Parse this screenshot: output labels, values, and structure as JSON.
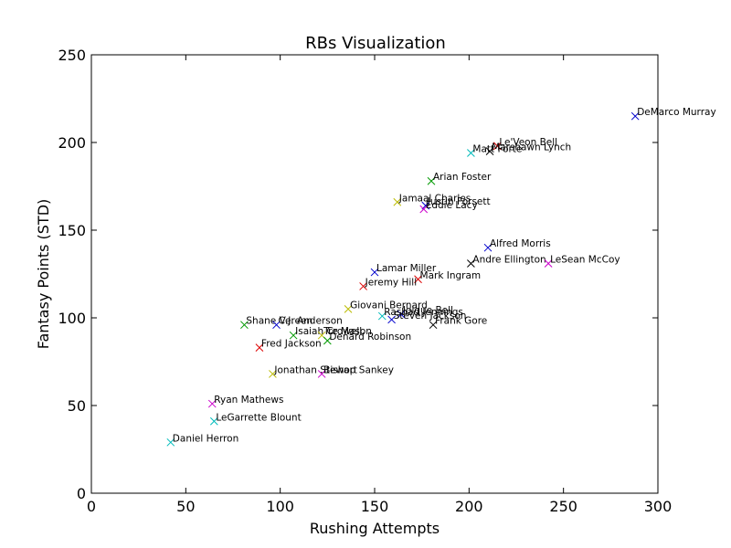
{
  "chart_data": {
    "type": "scatter",
    "title": "RBs Visualization",
    "xlabel": "Rushing Attempts",
    "ylabel": "Fantasy Points (STD)",
    "xlim": [
      0,
      300
    ],
    "ylim": [
      0,
      250
    ],
    "xticks": [
      "0",
      "50",
      "100",
      "150",
      "200",
      "250",
      "300"
    ],
    "yticks": [
      "0",
      "50",
      "100",
      "150",
      "200",
      "250"
    ],
    "grid": false,
    "marker": "x",
    "points": [
      {
        "name": "DeMarco Murray",
        "x": 288,
        "y": 215,
        "color": "#0000cc"
      },
      {
        "name": "Le'Veon Bell",
        "x": 215,
        "y": 198,
        "color": "#dd0000"
      },
      {
        "name": "Marshawn Lynch",
        "x": 211,
        "y": 195,
        "color": "#000000"
      },
      {
        "name": "Matt Forte",
        "x": 201,
        "y": 194,
        "color": "#00bbbb"
      },
      {
        "name": "Arian Foster",
        "x": 180,
        "y": 178,
        "color": "#009900"
      },
      {
        "name": "Jamaal Charles",
        "x": 162,
        "y": 166,
        "color": "#bbbb00"
      },
      {
        "name": "Justin Forsett",
        "x": 177,
        "y": 164,
        "color": "#0000cc"
      },
      {
        "name": "Eddie Lacy",
        "x": 176,
        "y": 162,
        "color": "#cc00cc"
      },
      {
        "name": "Alfred Morris",
        "x": 210,
        "y": 140,
        "color": "#0000cc"
      },
      {
        "name": "Andre Ellington",
        "x": 201,
        "y": 131,
        "color": "#000000"
      },
      {
        "name": "LeSean McCoy",
        "x": 242,
        "y": 131,
        "color": "#cc00cc"
      },
      {
        "name": "Lamar Miller",
        "x": 150,
        "y": 126,
        "color": "#0000cc"
      },
      {
        "name": "Mark Ingram",
        "x": 173,
        "y": 122,
        "color": "#dd0000"
      },
      {
        "name": "Jeremy Hill",
        "x": 144,
        "y": 118,
        "color": "#dd0000"
      },
      {
        "name": "Giovani Bernard",
        "x": 136,
        "y": 105,
        "color": "#bbbb00"
      },
      {
        "name": "Joique Bell",
        "x": 164,
        "y": 102,
        "color": "#0000cc"
      },
      {
        "name": "Rashad Jennings",
        "x": 154,
        "y": 101,
        "color": "#00bbbb"
      },
      {
        "name": "Steven Jackson",
        "x": 159,
        "y": 99,
        "color": "#0000cc"
      },
      {
        "name": "Frank Gore",
        "x": 181,
        "y": 96,
        "color": "#000000"
      },
      {
        "name": "Shane Vereen",
        "x": 81,
        "y": 96,
        "color": "#009900"
      },
      {
        "name": "C.J. Anderson",
        "x": 98,
        "y": 96,
        "color": "#0000cc"
      },
      {
        "name": "Isaiah Crowell",
        "x": 107,
        "y": 90,
        "color": "#009900"
      },
      {
        "name": "Tre Mason",
        "x": 122,
        "y": 90,
        "color": "#bbbb00"
      },
      {
        "name": "Denard Robinson",
        "x": 125,
        "y": 87,
        "color": "#009900"
      },
      {
        "name": "Fred Jackson",
        "x": 89,
        "y": 83,
        "color": "#dd0000"
      },
      {
        "name": "Jonathan Stewart",
        "x": 96,
        "y": 68,
        "color": "#bbbb00"
      },
      {
        "name": "Bishop Sankey",
        "x": 122,
        "y": 68,
        "color": "#cc00cc"
      },
      {
        "name": "Ryan Mathews",
        "x": 64,
        "y": 51,
        "color": "#cc00cc"
      },
      {
        "name": "LeGarrette Blount",
        "x": 65,
        "y": 41,
        "color": "#00bbbb"
      },
      {
        "name": "Daniel Herron",
        "x": 42,
        "y": 29,
        "color": "#00bbbb"
      }
    ]
  }
}
